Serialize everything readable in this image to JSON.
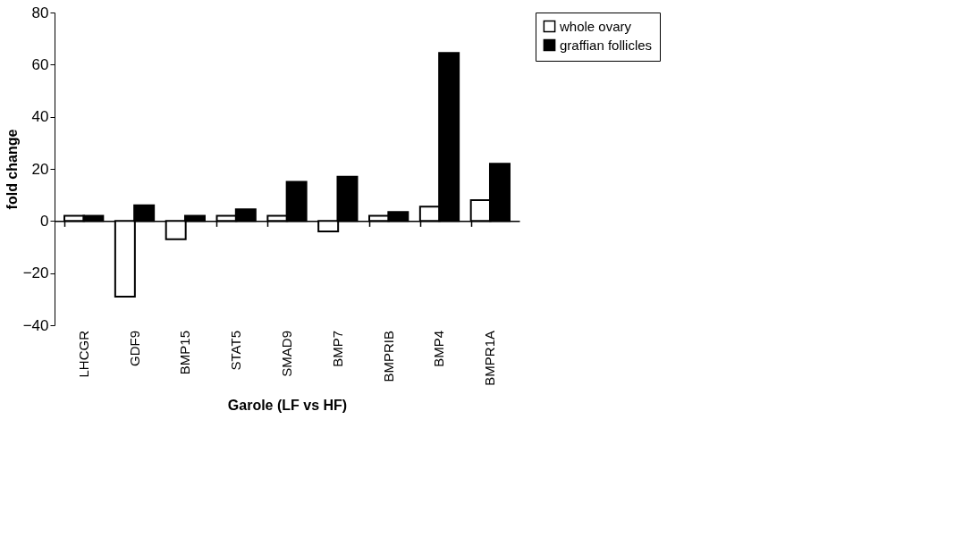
{
  "chart_data": {
    "type": "bar",
    "xlabel": "Garole (LF vs HF)",
    "ylabel": "fold change",
    "categories": [
      "LHCGR",
      "GDF9",
      "BMP15",
      "STAT5",
      "SMAD9",
      "BMP7",
      "BMPRIB",
      "BMP4",
      "BMPR1A"
    ],
    "series": [
      {
        "name": "whole ovary",
        "color": "#ffffff",
        "values": [
          2,
          -29,
          -7,
          2,
          2,
          -4,
          2,
          5.5,
          8
        ]
      },
      {
        "name": "graffian follicles",
        "color": "#000000",
        "values": [
          2,
          6,
          2,
          4.5,
          15,
          17,
          3.5,
          64.5,
          22
        ]
      }
    ],
    "ylim": [
      -40,
      80
    ],
    "yticks": [
      -40,
      -20,
      0,
      20,
      40,
      60,
      80
    ],
    "legend": "right"
  }
}
